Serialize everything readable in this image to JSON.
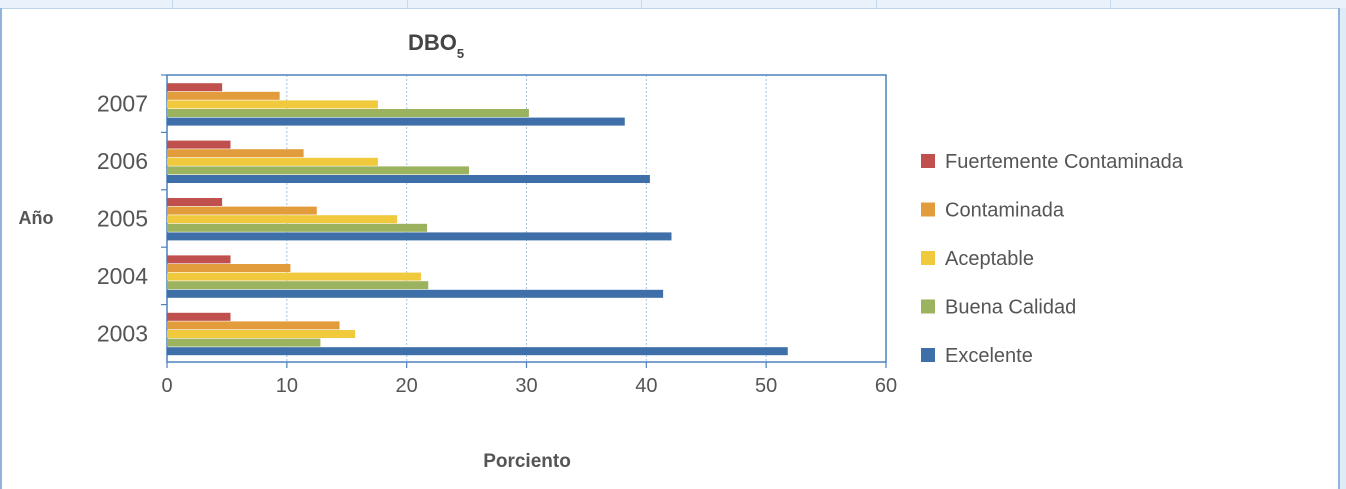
{
  "chart_data": {
    "type": "bar",
    "orientation": "horizontal",
    "title": "DBO",
    "title_subscript": "5",
    "xlabel": "Porciento",
    "ylabel": "Año",
    "categories": [
      "2003",
      "2004",
      "2005",
      "2006",
      "2007"
    ],
    "xlim": [
      0,
      60
    ],
    "xticks": [
      "0",
      "10",
      "20",
      "30",
      "40",
      "50",
      "60"
    ],
    "grid": true,
    "legend_position": "right",
    "series": [
      {
        "name": "Fuertemente Contaminada",
        "color": "#c0504d",
        "values": [
          5.3,
          5.3,
          4.6,
          5.3,
          4.6
        ]
      },
      {
        "name": "Contaminada",
        "color": "#e39c3c",
        "values": [
          14.4,
          10.3,
          12.5,
          11.4,
          9.4
        ]
      },
      {
        "name": "Aceptable",
        "color": "#f0c93c",
        "values": [
          15.7,
          21.2,
          19.2,
          17.6,
          17.6
        ]
      },
      {
        "name": "Buena Calidad",
        "color": "#9bb25e",
        "values": [
          12.8,
          21.8,
          21.7,
          25.2,
          30.2
        ]
      },
      {
        "name": "Excelente",
        "color": "#3e6fa8",
        "values": [
          51.8,
          41.4,
          42.1,
          40.3,
          38.2
        ]
      }
    ]
  }
}
